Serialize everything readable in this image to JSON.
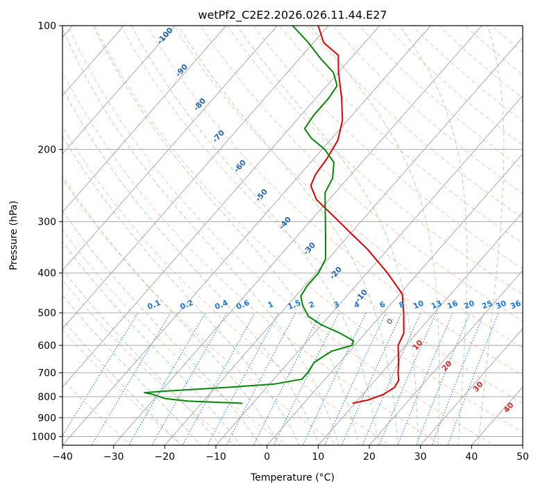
{
  "chart_data": {
    "type": "line",
    "title": "wetPf2_C2E2.2026.026.11.44.E27",
    "xlabel": "Temperature (°C)",
    "ylabel": "Pressure (hPa)",
    "xlim": [
      -40,
      50
    ],
    "ylim": [
      1050,
      100
    ],
    "y_scale": "log",
    "grid": true,
    "x_ticks": [
      "−40",
      "−30",
      "−20",
      "−10",
      "0",
      "10",
      "20",
      "30",
      "40",
      "50"
    ],
    "y_ticks": [
      "100",
      "200",
      "300",
      "400",
      "500",
      "600",
      "700",
      "800",
      "900",
      "1000"
    ],
    "series": [
      {
        "color": "#dd0000",
        "points": [
          {
            "p": 830,
            "t": 9.5
          },
          {
            "p": 815,
            "t": 12
          },
          {
            "p": 790,
            "t": 14
          },
          {
            "p": 760,
            "t": 15
          },
          {
            "p": 730,
            "t": 14.6
          },
          {
            "p": 700,
            "t": 13.2
          },
          {
            "p": 660,
            "t": 11.5
          },
          {
            "p": 600,
            "t": 8.5
          },
          {
            "p": 560,
            "t": 7.5
          },
          {
            "p": 500,
            "t": 4
          },
          {
            "p": 450,
            "t": 0.5
          },
          {
            "p": 400,
            "t": -6
          },
          {
            "p": 350,
            "t": -14
          },
          {
            "p": 320,
            "t": -20
          },
          {
            "p": 290,
            "t": -26.5
          },
          {
            "p": 265,
            "t": -32.5
          },
          {
            "p": 245,
            "t": -36
          },
          {
            "p": 230,
            "t": -37
          },
          {
            "p": 210,
            "t": -37.5
          },
          {
            "p": 190,
            "t": -38.5
          },
          {
            "p": 170,
            "t": -41
          },
          {
            "p": 150,
            "t": -45
          },
          {
            "p": 130,
            "t": -50
          },
          {
            "p": 118,
            "t": -53
          },
          {
            "p": 110,
            "t": -58
          },
          {
            "p": 100,
            "t": -62
          }
        ]
      },
      {
        "color": "#008800",
        "points": [
          {
            "p": 830,
            "t": -12
          },
          {
            "p": 820,
            "t": -23
          },
          {
            "p": 808,
            "t": -28
          },
          {
            "p": 790,
            "t": -31
          },
          {
            "p": 782,
            "t": -33
          },
          {
            "p": 775,
            "t": -29
          },
          {
            "p": 760,
            "t": -18
          },
          {
            "p": 745,
            "t": -9
          },
          {
            "p": 725,
            "t": -4.5
          },
          {
            "p": 700,
            "t": -4.5
          },
          {
            "p": 660,
            "t": -5
          },
          {
            "p": 620,
            "t": -3.5
          },
          {
            "p": 600,
            "t": -0.5
          },
          {
            "p": 585,
            "t": -1
          },
          {
            "p": 560,
            "t": -5
          },
          {
            "p": 535,
            "t": -10
          },
          {
            "p": 510,
            "t": -14
          },
          {
            "p": 480,
            "t": -17
          },
          {
            "p": 455,
            "t": -19
          },
          {
            "p": 430,
            "t": -19.5
          },
          {
            "p": 400,
            "t": -19.5
          },
          {
            "p": 370,
            "t": -20.5
          },
          {
            "p": 330,
            "t": -24
          },
          {
            "p": 290,
            "t": -28
          },
          {
            "p": 255,
            "t": -32
          },
          {
            "p": 235,
            "t": -33
          },
          {
            "p": 215,
            "t": -35.5
          },
          {
            "p": 200,
            "t": -39.5
          },
          {
            "p": 188,
            "t": -44
          },
          {
            "p": 178,
            "t": -47
          },
          {
            "p": 165,
            "t": -47.5
          },
          {
            "p": 150,
            "t": -47.5
          },
          {
            "p": 140,
            "t": -48
          },
          {
            "p": 130,
            "t": -51
          },
          {
            "p": 120,
            "t": -56
          },
          {
            "p": 110,
            "t": -61
          },
          {
            "p": 100,
            "t": -67
          }
        ]
      }
    ],
    "isotherm_labels": [
      "-100",
      "-90",
      "-80",
      "-70",
      "-60",
      "-50",
      "-40",
      "-30",
      "-20",
      "-10"
    ],
    "isotherm_labels_warm": [
      "0",
      "10",
      "20",
      "30",
      "40"
    ],
    "mixing_ratio_labels": [
      "0.1",
      "0.2",
      "0.4",
      "0.6",
      "1",
      "1.5",
      "2",
      "3",
      "4",
      "6",
      "8",
      "10",
      "13",
      "16",
      "20",
      "25",
      "30",
      "36"
    ],
    "colors": {
      "temperature": "#dd0000",
      "dewpoint": "#008800",
      "isotherm": "#aaaaaa",
      "dry_adiabat": "#ff9977",
      "moist_adiabat": "#66bb66",
      "mixing_ratio": "#1f77d4",
      "isotherm_label_cold": "#2166ac",
      "isotherm_label_warm": "#d62728",
      "freezing_label": "#888888"
    }
  }
}
